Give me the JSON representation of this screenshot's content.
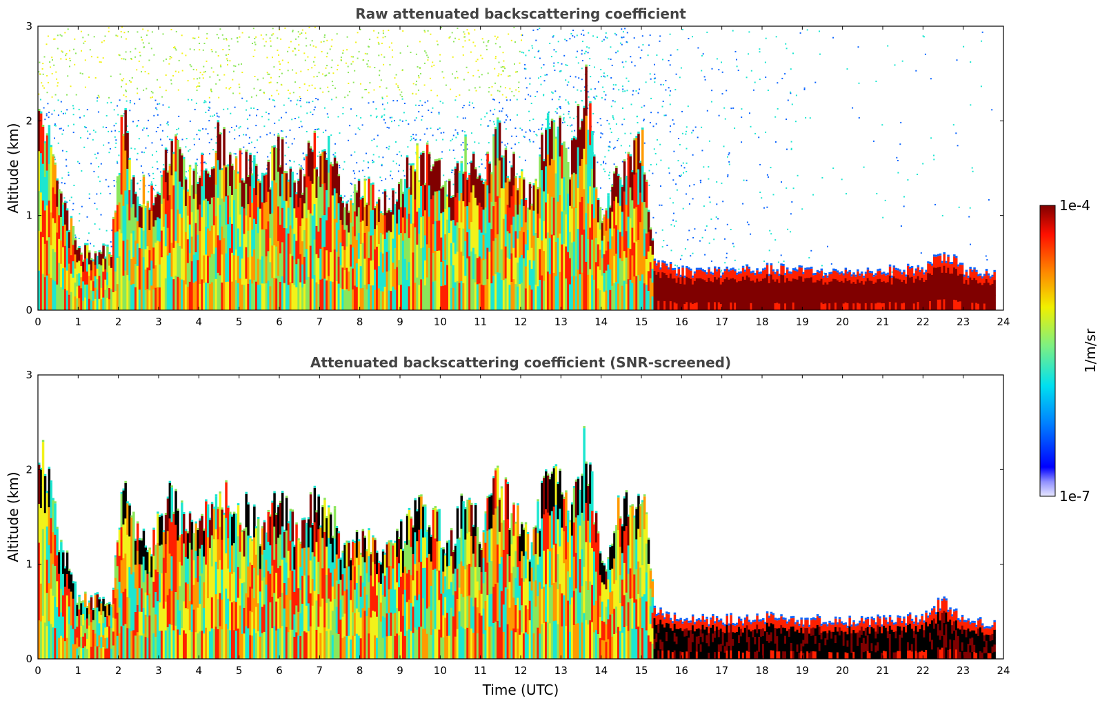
{
  "chart_data": [
    {
      "type": "heatmap",
      "title": "Raw attenuated backscattering coefficient",
      "xlabel": "",
      "ylabel": "Altitude (km)",
      "xlim": [
        0,
        24
      ],
      "ylim": [
        0,
        3
      ],
      "xticks": [
        "0",
        "1",
        "2",
        "3",
        "4",
        "5",
        "6",
        "7",
        "8",
        "9",
        "10",
        "11",
        "12",
        "13",
        "14",
        "15",
        "16",
        "17",
        "18",
        "19",
        "20",
        "21",
        "22",
        "23",
        "24"
      ],
      "yticks": [
        "0",
        "1",
        "2",
        "3"
      ],
      "data_end_time": 23.8,
      "cloud_tops_km": [
        [
          0.0,
          2.2
        ],
        [
          0.5,
          1.3
        ],
        [
          1.0,
          0.6
        ],
        [
          1.8,
          0.6
        ],
        [
          2.1,
          2.05
        ],
        [
          2.4,
          1.3
        ],
        [
          2.8,
          1.2
        ],
        [
          3.3,
          1.7
        ],
        [
          3.6,
          1.4
        ],
        [
          4.0,
          1.4
        ],
        [
          4.4,
          1.75
        ],
        [
          4.8,
          1.65
        ],
        [
          5.2,
          1.5
        ],
        [
          5.6,
          1.35
        ],
        [
          6.0,
          1.65
        ],
        [
          6.4,
          1.3
        ],
        [
          6.8,
          1.65
        ],
        [
          7.2,
          1.6
        ],
        [
          7.6,
          1.1
        ],
        [
          8.0,
          1.25
        ],
        [
          8.4,
          1.2
        ],
        [
          8.7,
          1.1
        ],
        [
          9.0,
          1.3
        ],
        [
          9.4,
          1.6
        ],
        [
          9.8,
          1.5
        ],
        [
          10.2,
          1.2
        ],
        [
          10.6,
          1.6
        ],
        [
          11.0,
          1.3
        ],
        [
          11.4,
          1.8
        ],
        [
          11.8,
          1.5
        ],
        [
          12.2,
          1.2
        ],
        [
          12.6,
          1.8
        ],
        [
          12.9,
          2.1
        ],
        [
          13.2,
          1.6
        ],
        [
          13.6,
          2.3
        ],
        [
          14.0,
          0.9
        ],
        [
          14.4,
          1.5
        ],
        [
          14.7,
          1.6
        ],
        [
          15.0,
          1.85
        ],
        [
          15.3,
          0.5
        ],
        [
          16.0,
          0.4
        ],
        [
          17.0,
          0.4
        ],
        [
          18.0,
          0.42
        ],
        [
          19.0,
          0.4
        ],
        [
          20.0,
          0.38
        ],
        [
          21.0,
          0.4
        ],
        [
          22.0,
          0.42
        ],
        [
          22.5,
          0.6
        ],
        [
          23.0,
          0.4
        ],
        [
          23.8,
          0.35
        ]
      ],
      "colorbar": {
        "min_label": "1e-7",
        "max_label": "1e-4",
        "label": "1/m/sr",
        "scale": "log"
      }
    },
    {
      "type": "heatmap",
      "title": "Attenuated backscattering coefficient (SNR-screened)",
      "xlabel": "Time (UTC)",
      "ylabel": "Altitude (km)",
      "xlim": [
        0,
        24
      ],
      "ylim": [
        0,
        3
      ],
      "xticks": [
        "0",
        "1",
        "2",
        "3",
        "4",
        "5",
        "6",
        "7",
        "8",
        "9",
        "10",
        "11",
        "12",
        "13",
        "14",
        "15",
        "16",
        "17",
        "18",
        "19",
        "20",
        "21",
        "22",
        "23",
        "24"
      ],
      "yticks": [
        "0",
        "1",
        "2",
        "3"
      ],
      "data_end_time": 23.8
    }
  ],
  "colors": {
    "dark_red": "#800000",
    "red": "#ff2000",
    "orange": "#ff9a00",
    "yellow": "#f2f21a",
    "green": "#8be65a",
    "cyan": "#1ce6d0",
    "blue": "#0a64ff",
    "dark_blue": "#0000ff",
    "title_gray": "#444444"
  }
}
